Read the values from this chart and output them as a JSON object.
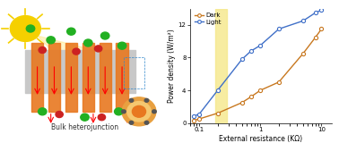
{
  "dark_x": [
    0.08,
    0.1,
    0.2,
    0.5,
    0.7,
    1.0,
    2.0,
    5.0,
    8.0,
    10.0
  ],
  "dark_y": [
    0.3,
    0.5,
    1.2,
    2.5,
    3.2,
    4.0,
    5.0,
    8.5,
    10.5,
    11.5
  ],
  "light_x": [
    0.08,
    0.1,
    0.2,
    0.5,
    0.7,
    1.0,
    2.0,
    5.0,
    8.0,
    10.0
  ],
  "light_y": [
    0.8,
    1.1,
    4.0,
    7.8,
    8.8,
    9.5,
    11.5,
    12.5,
    13.5,
    13.8
  ],
  "dark_color": "#c87820",
  "light_color": "#4070c8",
  "shade_x_min": 0.18,
  "shade_x_max": 0.28,
  "shade_color": "#f5e88a",
  "xlabel": "External resistance (KΩ)",
  "ylabel": "Power density (W/m²)",
  "legend_dark": "Dark",
  "legend_light": "Light",
  "xlim": [
    0.07,
    15
  ],
  "ylim": [
    0,
    14
  ],
  "yticks": [
    0,
    4,
    8,
    12
  ],
  "background_color": "#f8f8f8"
}
